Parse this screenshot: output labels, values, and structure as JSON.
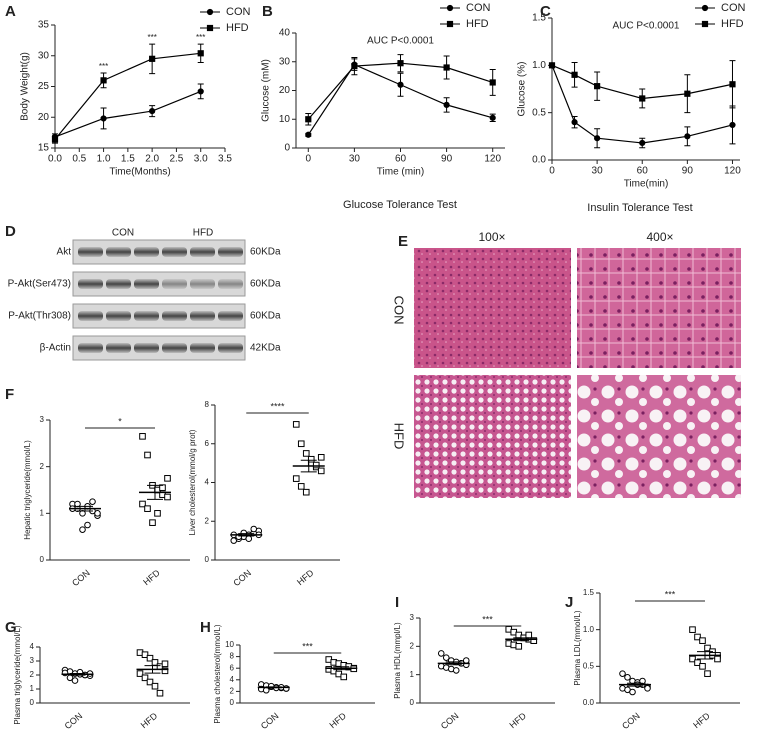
{
  "chart_data": [
    {
      "type": "line",
      "panel": "A",
      "x": [
        0,
        1,
        2,
        3
      ],
      "xlim": [
        0,
        3.5
      ],
      "xticks": [
        {
          "value": 0,
          "label": "0.0"
        },
        {
          "value": 0.5,
          "label": "0.5"
        },
        {
          "value": 1,
          "label": "1.0"
        },
        {
          "value": 1.5,
          "label": "1.5"
        },
        {
          "value": 2,
          "label": "2.0"
        },
        {
          "value": 2.5,
          "label": "2.5"
        },
        {
          "value": 3,
          "label": "3.0"
        },
        {
          "value": 3.5,
          "label": "3.5"
        }
      ],
      "ylim": [
        15,
        35
      ],
      "yticks": [
        15,
        20,
        25,
        30,
        35
      ],
      "xlabel": "Time(Months)",
      "ylabel": "Body Weight(g)",
      "legend": "upper right",
      "series": [
        {
          "name": "CON",
          "color": "#000000",
          "marker": "circle",
          "values": [
            16.8,
            19.8,
            21,
            24.2
          ],
          "errors": [
            0.5,
            1.7,
            0.9,
            1.2
          ]
        },
        {
          "name": "HFD",
          "color": "#000000",
          "marker": "square",
          "values": [
            16.4,
            26,
            29.5,
            30.4
          ],
          "errors": [
            0.6,
            1.2,
            2.4,
            1.5
          ]
        }
      ],
      "significance": [
        null,
        "***",
        "***",
        "***"
      ]
    },
    {
      "type": "line",
      "panel": "B",
      "x": [
        0,
        30,
        60,
        90,
        120
      ],
      "xlim": [
        -8,
        128
      ],
      "xticks": [
        0,
        30,
        60,
        90,
        120
      ],
      "ylim": [
        0,
        40
      ],
      "yticks": [
        0,
        10,
        20,
        30,
        40
      ],
      "xlabel": "Time (min)",
      "ylabel": "Glucose (mM)",
      "annotation": "AUC P<0.0001",
      "caption": "Glucose Tolerance Test",
      "legend": "upper right",
      "series": [
        {
          "name": "CON",
          "color": "#000000",
          "marker": "circle",
          "values": [
            4.6,
            29,
            22,
            15,
            10.5
          ],
          "errors": [
            0.5,
            2,
            4,
            2.5,
            1.3
          ]
        },
        {
          "name": "HFD",
          "color": "#000000",
          "marker": "square",
          "values": [
            10,
            28.5,
            29.5,
            28,
            22.8
          ],
          "errors": [
            2,
            3,
            3,
            4,
            4.5
          ]
        }
      ]
    },
    {
      "type": "line",
      "panel": "C",
      "x": [
        0,
        15,
        30,
        60,
        90,
        120
      ],
      "xlim": [
        0,
        125
      ],
      "xticks": [
        0,
        30,
        60,
        90,
        120
      ],
      "ylim": [
        0,
        1.5
      ],
      "yticks": [
        {
          "value": 0,
          "label": "0.0"
        },
        {
          "value": 0.5,
          "label": "0.5"
        },
        {
          "value": 1,
          "label": "1.0"
        },
        {
          "value": 1.5,
          "label": "1.5"
        }
      ],
      "xlabel": "Time(min)",
      "ylabel": "Glucose (%)",
      "annotation": "AUC P<0.0001",
      "caption": "Insulin Tolerance Test",
      "legend": "upper right",
      "series": [
        {
          "name": "CON",
          "color": "#000000",
          "marker": "circle",
          "values": [
            1,
            0.4,
            0.23,
            0.18,
            0.25,
            0.37
          ],
          "errors": [
            0,
            0.06,
            0.1,
            0.05,
            0.1,
            0.2
          ]
        },
        {
          "name": "HFD",
          "color": "#000000",
          "marker": "square",
          "values": [
            1,
            0.9,
            0.78,
            0.65,
            0.7,
            0.8
          ],
          "errors": [
            0,
            0.13,
            0.15,
            0.1,
            0.2,
            0.25
          ]
        }
      ]
    },
    {
      "type": "dot",
      "panel": "F",
      "ylabel": "Hepatic triglyceride(mmol/L)",
      "categories": [
        "CON",
        "HFD"
      ],
      "ylim": [
        0,
        3
      ],
      "yticks": [
        0,
        1,
        2,
        3
      ],
      "significance": "*",
      "groups": [
        {
          "values": [
            1.2,
            1.1,
            1.0,
            1.15,
            1.05,
            0.95,
            1.1,
            1.2,
            0.65,
            0.75,
            1.25,
            1.0
          ],
          "mean": 1.1,
          "sem": 0.05
        },
        {
          "values": [
            2.65,
            2.25,
            1.6,
            1.5,
            1.4,
            1.35,
            1.2,
            1.1,
            0.8,
            1.0,
            1.55,
            1.75
          ],
          "mean": 1.45,
          "sem": 0.15
        }
      ]
    },
    {
      "type": "dot",
      "ylabel": "Liver cholesterol(mmol/g prot)",
      "categories": [
        "CON",
        "HFD"
      ],
      "ylim": [
        0,
        8
      ],
      "yticks": [
        0,
        2,
        4,
        6,
        8
      ],
      "significance": "****",
      "groups": [
        {
          "values": [
            1.0,
            1.1,
            1.2,
            1.3,
            1.4,
            1.5,
            1.3,
            1.2,
            1.4,
            1.1,
            1.6,
            1.3
          ],
          "mean": 1.3,
          "sem": 0.06
        },
        {
          "values": [
            7.0,
            6.0,
            5.5,
            5.0,
            4.8,
            4.6,
            4.2,
            3.8,
            3.5,
            5.2,
            4.9,
            5.3
          ],
          "mean": 4.85,
          "sem": 0.3
        }
      ]
    },
    {
      "type": "dot",
      "panel": "G",
      "ylabel": "Plasma triglyceride(mmol/L)",
      "categories": [
        "CON",
        "HFD"
      ],
      "ylim": [
        0,
        4
      ],
      "yticks": [
        0,
        1,
        2,
        3,
        4
      ],
      "groups": [
        {
          "values": [
            2.35,
            2.25,
            2.1,
            2.05,
            2.0,
            1.95,
            2.15,
            1.8,
            1.6,
            2.2,
            2.0,
            2.1
          ],
          "mean": 2.05,
          "sem": 0.06
        },
        {
          "values": [
            3.6,
            3.45,
            3.2,
            2.9,
            2.6,
            2.3,
            2.1,
            1.8,
            1.5,
            1.2,
            0.7,
            2.8
          ],
          "mean": 2.4,
          "sem": 0.27
        }
      ]
    },
    {
      "type": "dot",
      "panel": "H",
      "ylabel": "Plasma cholesterol(mmol/L)",
      "categories": [
        "CON",
        "HFD"
      ],
      "ylim": [
        0,
        10
      ],
      "yticks": [
        0,
        2,
        4,
        6,
        8,
        10
      ],
      "significance": "***",
      "groups": [
        {
          "values": [
            3.2,
            3.0,
            2.8,
            2.7,
            2.6,
            2.5,
            2.4,
            2.2,
            2.9,
            2.6,
            2.7,
            2.5
          ],
          "mean": 2.7,
          "sem": 0.08
        },
        {
          "values": [
            7.5,
            7.0,
            6.8,
            6.5,
            6.2,
            6.0,
            5.8,
            5.5,
            5.0,
            4.5,
            6.3,
            5.9
          ],
          "mean": 6.0,
          "sem": 0.25
        }
      ]
    },
    {
      "type": "dot",
      "panel": "I",
      "ylabel": "Plasma HDL(mmpl/L)",
      "categories": [
        "CON",
        "HFD"
      ],
      "ylim": [
        0,
        3
      ],
      "yticks": [
        0,
        1,
        2,
        3
      ],
      "significance": "***",
      "groups": [
        {
          "values": [
            1.75,
            1.6,
            1.5,
            1.45,
            1.4,
            1.35,
            1.3,
            1.25,
            1.2,
            1.15,
            1.4,
            1.5
          ],
          "mean": 1.4,
          "sem": 0.05
        },
        {
          "values": [
            2.6,
            2.5,
            2.4,
            2.3,
            2.25,
            2.2,
            2.1,
            2.05,
            2.0,
            2.3,
            2.4,
            2.2
          ],
          "mean": 2.25,
          "sem": 0.05
        }
      ]
    },
    {
      "type": "dot",
      "panel": "J",
      "ylabel": "Plasma LDL(mmol/L)",
      "categories": [
        "CON",
        "HFD"
      ],
      "ylim": [
        0,
        1.5
      ],
      "yticks": [
        {
          "value": 0,
          "label": "0.0"
        },
        {
          "value": 0.5,
          "label": "0.5"
        },
        {
          "value": 1,
          "label": "1.0"
        },
        {
          "value": 1.5,
          "label": "1.5"
        }
      ],
      "significance": "***",
      "groups": [
        {
          "values": [
            0.4,
            0.35,
            0.3,
            0.28,
            0.25,
            0.22,
            0.2,
            0.18,
            0.15,
            0.25,
            0.3,
            0.2
          ],
          "mean": 0.25,
          "sem": 0.02
        },
        {
          "values": [
            1.0,
            0.9,
            0.85,
            0.75,
            0.7,
            0.65,
            0.6,
            0.55,
            0.5,
            0.4,
            0.65,
            0.6
          ],
          "mean": 0.65,
          "sem": 0.05
        }
      ]
    }
  ],
  "blot": {
    "panel": "D",
    "groups": [
      "CON",
      "HFD"
    ],
    "rows": [
      {
        "label": "Akt",
        "size": "60KDa"
      },
      {
        "label": "P-Akt(Ser473)",
        "size": "60KDa"
      },
      {
        "label": "P-Akt(Thr308)",
        "size": "60KDa"
      },
      {
        "label": "β-Actin",
        "size": "42KDa"
      }
    ]
  },
  "histology": {
    "panel": "E",
    "columns": [
      "100×",
      "400×"
    ],
    "rows": [
      "CON",
      "HFD"
    ]
  }
}
